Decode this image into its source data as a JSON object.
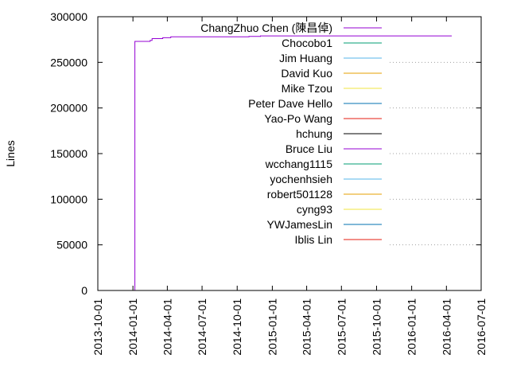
{
  "chart_data": {
    "type": "line",
    "title": "",
    "xlabel": "",
    "ylabel": "Lines",
    "x_axis_type": "date",
    "xlim": [
      "2013-10-01",
      "2016-07-01"
    ],
    "ylim": [
      0,
      300000
    ],
    "x_ticks": [
      "2013-10-01",
      "2014-01-01",
      "2014-04-01",
      "2014-07-01",
      "2014-10-01",
      "2015-01-01",
      "2015-04-01",
      "2015-07-01",
      "2015-10-01",
      "2016-01-01",
      "2016-04-01",
      "2016-07-01"
    ],
    "y_ticks": [
      0,
      50000,
      100000,
      150000,
      200000,
      250000,
      300000
    ],
    "y_tick_labels": [
      "0",
      "50000",
      "100000",
      "150000",
      "200000",
      "250000",
      "300000"
    ],
    "grid": "dotted horizontal gridlines at y ticks (visible where not covered by legend)",
    "legend_placement": "top-right inside plot",
    "series": [
      {
        "name": "ChangZhuo Chen (陳昌倬)",
        "color": "#9400d3",
        "step": true,
        "points": [
          [
            "2013-10-01",
            0
          ],
          [
            "2014-01-05",
            0
          ],
          [
            "2014-01-06",
            273000
          ],
          [
            "2014-02-15",
            274000
          ],
          [
            "2014-02-20",
            276000
          ],
          [
            "2014-03-20",
            277000
          ],
          [
            "2014-04-10",
            278000
          ],
          [
            "2014-11-01",
            278500
          ],
          [
            "2014-12-01",
            279000
          ],
          [
            "2016-04-15",
            279000
          ]
        ]
      },
      {
        "name": "Chocobo1",
        "color": "#009e73",
        "step": true,
        "points": [
          [
            "2016-03-15",
            0
          ],
          [
            "2016-04-10",
            0
          ]
        ]
      },
      {
        "name": "Jim Huang",
        "color": "#56b4e9",
        "step": true,
        "points": []
      },
      {
        "name": "David Kuo",
        "color": "#e69f00",
        "step": true,
        "points": []
      },
      {
        "name": "Mike Tzou",
        "color": "#f0e442",
        "step": true,
        "points": []
      },
      {
        "name": "Peter Dave Hello",
        "color": "#0072b2",
        "step": true,
        "points": []
      },
      {
        "name": "Yao-Po Wang",
        "color": "#e51e10",
        "step": true,
        "points": []
      },
      {
        "name": "hchung",
        "color": "#000000",
        "step": true,
        "points": []
      },
      {
        "name": "Bruce Liu",
        "color": "#9400d3",
        "step": true,
        "points": []
      },
      {
        "name": "wcchang1115",
        "color": "#009e73",
        "step": true,
        "points": []
      },
      {
        "name": "yochenhsieh",
        "color": "#56b4e9",
        "step": true,
        "points": []
      },
      {
        "name": "robert501128",
        "color": "#e69f00",
        "step": true,
        "points": []
      },
      {
        "name": "cyng93",
        "color": "#f0e442",
        "step": true,
        "points": []
      },
      {
        "name": "YWJamesLin",
        "color": "#0072b2",
        "step": true,
        "points": []
      },
      {
        "name": "Iblis Lin",
        "color": "#e51e10",
        "step": true,
        "points": []
      }
    ]
  }
}
